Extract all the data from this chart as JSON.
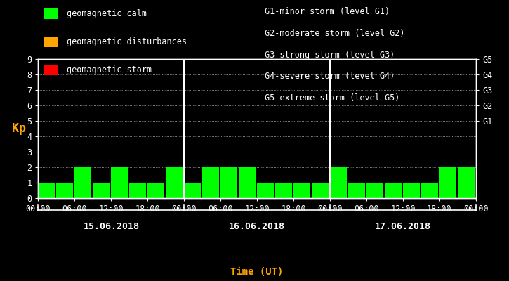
{
  "bg_color": "#000000",
  "bar_color_calm": "#00ff00",
  "bar_color_disturbances": "#ffa500",
  "bar_color_storm": "#ff0000",
  "ylabel": "Kp",
  "xlabel": "Time (UT)",
  "xlabel_color": "#ffa500",
  "ylabel_color": "#ffa500",
  "tick_color": "#ffffff",
  "ylim": [
    0,
    9
  ],
  "dates": [
    "15.06.2018",
    "16.06.2018",
    "17.06.2018"
  ],
  "kp_values": [
    [
      1,
      1,
      2,
      1,
      2,
      1,
      1,
      2
    ],
    [
      1,
      2,
      2,
      2,
      1,
      1,
      1,
      1
    ],
    [
      2,
      1,
      1,
      1,
      1,
      1,
      2,
      2
    ]
  ],
  "g_labels": [
    "G5",
    "G4",
    "G3",
    "G2",
    "G1"
  ],
  "g_levels": [
    9,
    8,
    7,
    6,
    5
  ],
  "legend_items": [
    {
      "label": "geomagnetic calm",
      "color": "#00ff00"
    },
    {
      "label": "geomagnetic disturbances",
      "color": "#ffa500"
    },
    {
      "label": "geomagnetic storm",
      "color": "#ff0000"
    }
  ],
  "storm_info": [
    "G1-minor storm (level G1)",
    "G2-moderate storm (level G2)",
    "G3-strong storm (level G3)",
    "G4-severe storm (level G4)",
    "G5-extreme storm (level G5)"
  ],
  "font_family": "monospace",
  "font_size": 8.5
}
